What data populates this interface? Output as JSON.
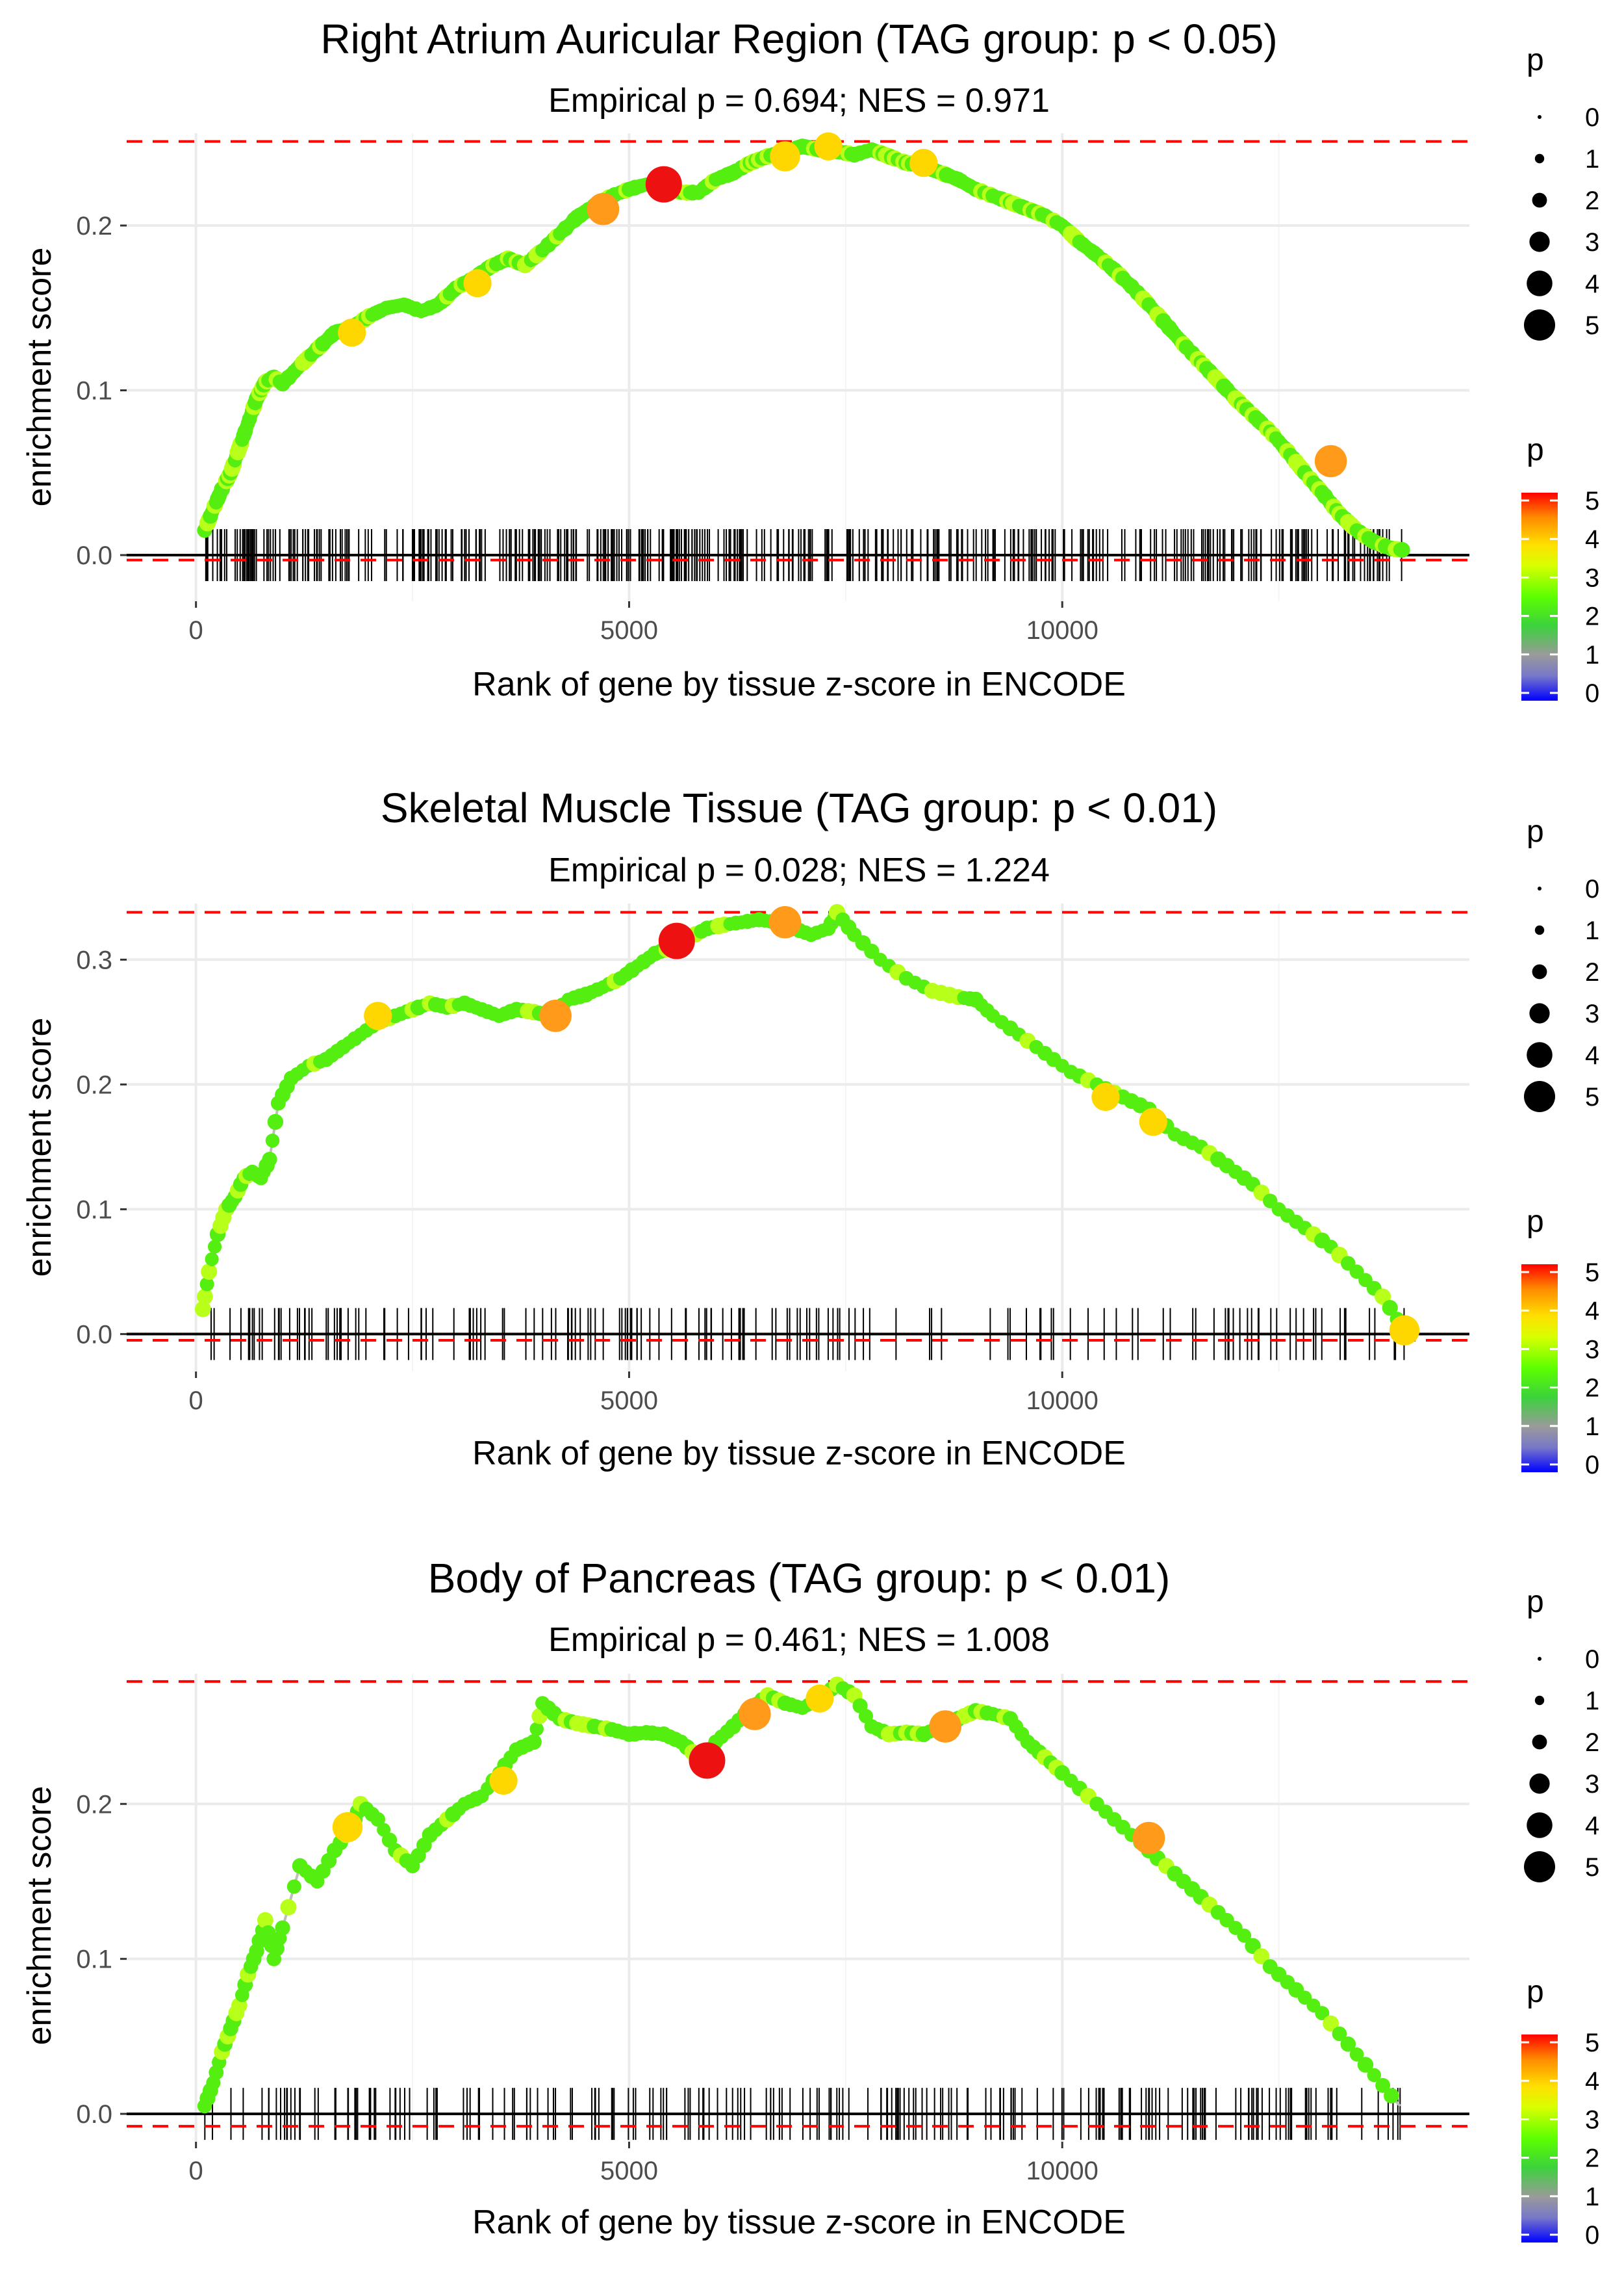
{
  "chart_data": [
    {
      "type": "line",
      "title": "Right Atrium Auricular Region (TAG group: p < 0.05)",
      "subtitle": "Empirical p = 0.694; NES = 0.971",
      "xlabel": "Rank of gene by tissue z-score in ENCODE",
      "ylabel": "enrichment score",
      "xlim": [
        -800,
        14700
      ],
      "ylim": [
        -0.028,
        0.256
      ],
      "xticks": [
        0,
        5000,
        10000
      ],
      "yticks": [
        0.0,
        0.1,
        0.2
      ],
      "ytick_labels": [
        "0.0",
        "0.1",
        "0.2"
      ],
      "xtick_labels": [
        "0",
        "5000",
        "10000"
      ],
      "hline_upper": 0.251,
      "hline_lower": -0.003,
      "rug_density": "dense",
      "x": [
        100,
        200,
        300,
        400,
        500,
        600,
        700,
        800,
        900,
        1000,
        1200,
        1400,
        1600,
        1800,
        2000,
        2200,
        2400,
        2600,
        2800,
        3000,
        3200,
        3400,
        3600,
        3800,
        4000,
        4200,
        4400,
        4600,
        4800,
        5000,
        5200,
        5400,
        5600,
        5800,
        6000,
        6200,
        6400,
        6600,
        6800,
        7000,
        7200,
        7400,
        7600,
        7800,
        8000,
        8200,
        8400,
        8600,
        8800,
        9000,
        9200,
        9400,
        9600,
        9800,
        10000,
        10200,
        10400,
        10600,
        10800,
        11000,
        11200,
        11400,
        11600,
        11800,
        12000,
        12200,
        12400,
        12600,
        12800,
        13000,
        13200,
        13400,
        13600,
        13800,
        13950
      ],
      "y": [
        0.015,
        0.028,
        0.04,
        0.05,
        0.065,
        0.08,
        0.095,
        0.105,
        0.108,
        0.104,
        0.115,
        0.125,
        0.135,
        0.138,
        0.145,
        0.15,
        0.152,
        0.148,
        0.152,
        0.162,
        0.168,
        0.175,
        0.18,
        0.176,
        0.185,
        0.195,
        0.205,
        0.212,
        0.218,
        0.222,
        0.225,
        0.224,
        0.22,
        0.22,
        0.228,
        0.232,
        0.238,
        0.242,
        0.245,
        0.248,
        0.246,
        0.245,
        0.243,
        0.246,
        0.242,
        0.238,
        0.236,
        0.232,
        0.228,
        0.222,
        0.218,
        0.214,
        0.21,
        0.206,
        0.2,
        0.19,
        0.182,
        0.173,
        0.163,
        0.152,
        0.14,
        0.128,
        0.117,
        0.106,
        0.095,
        0.085,
        0.075,
        0.063,
        0.05,
        0.038,
        0.025,
        0.015,
        0.008,
        0.004,
        0.003
      ],
      "highlight_points": [
        {
          "x": 5400,
          "y": 0.225,
          "p": 5
        },
        {
          "x": 4700,
          "y": 0.21,
          "p": 4
        },
        {
          "x": 6800,
          "y": 0.242,
          "p": 3.5
        },
        {
          "x": 3250,
          "y": 0.165,
          "p": 3
        },
        {
          "x": 1800,
          "y": 0.135,
          "p": 3
        },
        {
          "x": 13100,
          "y": 0.057,
          "p": 4
        },
        {
          "x": 7300,
          "y": 0.248,
          "p": 3
        },
        {
          "x": 8400,
          "y": 0.238,
          "p": 3
        }
      ],
      "legend_size": {
        "title": "p",
        "labels": [
          "0",
          "1",
          "2",
          "3",
          "4",
          "5"
        ]
      },
      "legend_color": {
        "title": "p",
        "labels": [
          "5",
          "4",
          "3",
          "2",
          "1",
          "0"
        ]
      }
    },
    {
      "type": "line",
      "title": "Skeletal Muscle Tissue (TAG group: p < 0.01)",
      "subtitle": "Empirical p = 0.028; NES = 1.224",
      "xlabel": "Rank of gene by tissue z-score in ENCODE",
      "ylabel": "enrichment score",
      "xlim": [
        -800,
        14700
      ],
      "ylim": [
        -0.03,
        0.345
      ],
      "xticks": [
        0,
        5000,
        10000
      ],
      "yticks": [
        0.0,
        0.1,
        0.2,
        0.3
      ],
      "ytick_labels": [
        "0.0",
        "0.1",
        "0.2",
        "0.3"
      ],
      "xtick_labels": [
        "0",
        "5000",
        "10000"
      ],
      "hline_upper": 0.338,
      "hline_lower": -0.005,
      "rug_density": "sparse",
      "x": [
        80,
        150,
        250,
        350,
        450,
        550,
        650,
        750,
        850,
        950,
        1100,
        1300,
        1500,
        1700,
        1900,
        2100,
        2300,
        2500,
        2700,
        2900,
        3100,
        3300,
        3500,
        3700,
        3900,
        4100,
        4300,
        4500,
        4700,
        4900,
        5100,
        5300,
        5500,
        5700,
        5900,
        6100,
        6300,
        6500,
        6700,
        6900,
        7100,
        7300,
        7400,
        7600,
        7900,
        8200,
        8500,
        8800,
        9000,
        9200,
        9500,
        9800,
        10100,
        10400,
        10700,
        11000,
        11300,
        11600,
        11900,
        12200,
        12500,
        12800,
        13100,
        13400,
        13700,
        13950
      ],
      "y": [
        0.02,
        0.05,
        0.08,
        0.1,
        0.11,
        0.125,
        0.13,
        0.125,
        0.14,
        0.185,
        0.205,
        0.215,
        0.22,
        0.23,
        0.24,
        0.25,
        0.255,
        0.26,
        0.265,
        0.262,
        0.265,
        0.26,
        0.255,
        0.26,
        0.258,
        0.255,
        0.268,
        0.272,
        0.278,
        0.285,
        0.295,
        0.305,
        0.31,
        0.318,
        0.325,
        0.328,
        0.33,
        0.332,
        0.33,
        0.325,
        0.32,
        0.325,
        0.338,
        0.32,
        0.3,
        0.285,
        0.275,
        0.27,
        0.268,
        0.255,
        0.24,
        0.225,
        0.21,
        0.2,
        0.19,
        0.18,
        0.16,
        0.15,
        0.135,
        0.12,
        0.1,
        0.085,
        0.07,
        0.05,
        0.03,
        0.003
      ],
      "highlight_points": [
        {
          "x": 5550,
          "y": 0.315,
          "p": 5
        },
        {
          "x": 6800,
          "y": 0.33,
          "p": 4
        },
        {
          "x": 4150,
          "y": 0.255,
          "p": 4
        },
        {
          "x": 2100,
          "y": 0.255,
          "p": 3
        },
        {
          "x": 10500,
          "y": 0.19,
          "p": 3
        },
        {
          "x": 11050,
          "y": 0.17,
          "p": 3
        },
        {
          "x": 13950,
          "y": 0.003,
          "p": 3.5
        }
      ],
      "legend_size": {
        "title": "p",
        "labels": [
          "0",
          "1",
          "2",
          "3",
          "4",
          "5"
        ]
      },
      "legend_color": {
        "title": "p",
        "labels": [
          "5",
          "4",
          "3",
          "2",
          "1",
          "0"
        ]
      }
    },
    {
      "type": "line",
      "title": "Body of Pancreas (TAG group: p < 0.01)",
      "subtitle": "Empirical p = 0.461; NES = 1.008",
      "xlabel": "Rank of gene by tissue z-score in ENCODE",
      "ylabel": "enrichment score",
      "xlim": [
        -800,
        14700
      ],
      "ylim": [
        -0.018,
        0.284
      ],
      "xticks": [
        0,
        5000,
        10000
      ],
      "yticks": [
        0.0,
        0.1,
        0.2
      ],
      "ytick_labels": [
        "0.0",
        "0.1",
        "0.2"
      ],
      "xtick_labels": [
        "0",
        "5000",
        "10000"
      ],
      "hline_upper": 0.279,
      "hline_lower": -0.008,
      "rug_density": "medium",
      "x": [
        100,
        200,
        300,
        400,
        500,
        600,
        700,
        800,
        900,
        1000,
        1200,
        1400,
        1600,
        1800,
        1900,
        2100,
        2300,
        2500,
        2700,
        2900,
        3100,
        3300,
        3500,
        3700,
        3900,
        4000,
        4200,
        4400,
        4600,
        4800,
        5000,
        5200,
        5400,
        5600,
        5800,
        5900,
        6000,
        6200,
        6400,
        6600,
        6800,
        7000,
        7200,
        7400,
        7600,
        7800,
        8000,
        8200,
        8400,
        8600,
        8800,
        9000,
        9200,
        9400,
        9600,
        9800,
        10000,
        10300,
        10600,
        10900,
        11200,
        11500,
        11800,
        12100,
        12400,
        12700,
        13000,
        13300,
        13600,
        13900
      ],
      "y": [
        0.005,
        0.02,
        0.04,
        0.055,
        0.07,
        0.09,
        0.105,
        0.125,
        0.1,
        0.12,
        0.16,
        0.15,
        0.17,
        0.185,
        0.2,
        0.19,
        0.17,
        0.16,
        0.18,
        0.19,
        0.2,
        0.205,
        0.22,
        0.235,
        0.24,
        0.265,
        0.255,
        0.252,
        0.25,
        0.248,
        0.245,
        0.246,
        0.245,
        0.24,
        0.23,
        0.228,
        0.24,
        0.25,
        0.262,
        0.27,
        0.265,
        0.262,
        0.268,
        0.277,
        0.27,
        0.25,
        0.245,
        0.246,
        0.245,
        0.25,
        0.255,
        0.26,
        0.258,
        0.255,
        0.24,
        0.23,
        0.22,
        0.205,
        0.19,
        0.175,
        0.16,
        0.145,
        0.13,
        0.115,
        0.095,
        0.08,
        0.065,
        0.045,
        0.025,
        0.005
      ],
      "highlight_points": [
        {
          "x": 5900,
          "y": 0.228,
          "p": 5
        },
        {
          "x": 6450,
          "y": 0.258,
          "p": 4
        },
        {
          "x": 8650,
          "y": 0.25,
          "p": 4
        },
        {
          "x": 11000,
          "y": 0.178,
          "p": 4
        },
        {
          "x": 1750,
          "y": 0.185,
          "p": 3.5
        },
        {
          "x": 3550,
          "y": 0.215,
          "p": 3
        },
        {
          "x": 7200,
          "y": 0.268,
          "p": 3
        }
      ],
      "legend_size": {
        "title": "p",
        "labels": [
          "0",
          "1",
          "2",
          "3",
          "4",
          "5"
        ]
      },
      "legend_color": {
        "title": "p",
        "labels": [
          "5",
          "4",
          "3",
          "2",
          "1",
          "0"
        ]
      }
    }
  ],
  "colors": {
    "hline": "#ff0000",
    "grid": "#ebebeb",
    "path": "#bebebe",
    "zero_line": "#000000",
    "rug": "#000000",
    "colorbar_stops": [
      "#0000ff",
      "#8080c0",
      "#a0a0a0",
      "#00e000",
      "#80ff00",
      "#ffff00",
      "#ffa500",
      "#ff0000"
    ]
  }
}
